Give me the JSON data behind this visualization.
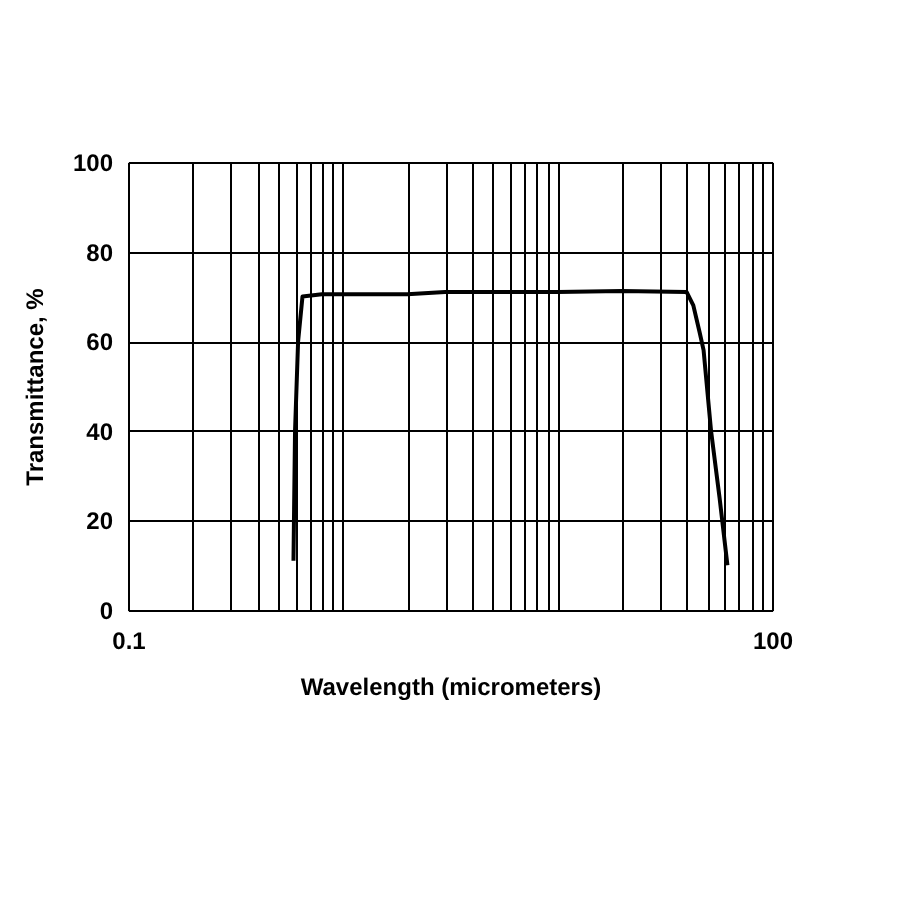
{
  "chart_data": {
    "type": "line",
    "xlabel": "Wavelength (micrometers)",
    "ylabel": "Transmittance, %",
    "log": "x",
    "grid": true,
    "xlim": [
      0.1,
      100
    ],
    "ylim": [
      0,
      100
    ],
    "yticks": [
      0,
      20,
      40,
      60,
      80,
      100
    ],
    "xticks": [
      0.1,
      {
        "value": 0.2,
        "label": null
      },
      {
        "value": 0.3,
        "label": null
      },
      {
        "value": 0.4,
        "label": null
      },
      {
        "value": 0.5,
        "label": null
      },
      {
        "value": 0.6,
        "label": null
      },
      {
        "value": 0.7,
        "label": null
      },
      {
        "value": 0.8,
        "label": null
      },
      {
        "value": 0.9,
        "label": null
      },
      {
        "value": 1,
        "label": null
      },
      {
        "value": 2,
        "label": null
      },
      {
        "value": 3,
        "label": null
      },
      {
        "value": 4,
        "label": null
      },
      {
        "value": 5,
        "label": null
      },
      {
        "value": 6,
        "label": null
      },
      {
        "value": 7,
        "label": null
      },
      {
        "value": 8,
        "label": null
      },
      {
        "value": 9,
        "label": null
      },
      {
        "value": 10,
        "label": null
      },
      {
        "value": 20,
        "label": null
      },
      {
        "value": 30,
        "label": null
      },
      {
        "value": 40,
        "label": null
      },
      {
        "value": 50,
        "label": null
      },
      {
        "value": 60,
        "label": null
      },
      {
        "value": 70,
        "label": null
      },
      {
        "value": 80,
        "label": null
      },
      {
        "value": 90,
        "label": null
      },
      100
    ],
    "series": [
      {
        "color": "#000000",
        "x": [
          0.59,
          0.6,
          0.62,
          0.65,
          0.8,
          2,
          3,
          10,
          20,
          40,
          43,
          46,
          48,
          52,
          57,
          62
        ],
        "values": [
          11,
          40,
          60,
          70,
          70.5,
          70.5,
          71,
          71,
          71.2,
          71,
          68,
          62,
          58,
          40,
          25,
          10
        ]
      }
    ]
  }
}
